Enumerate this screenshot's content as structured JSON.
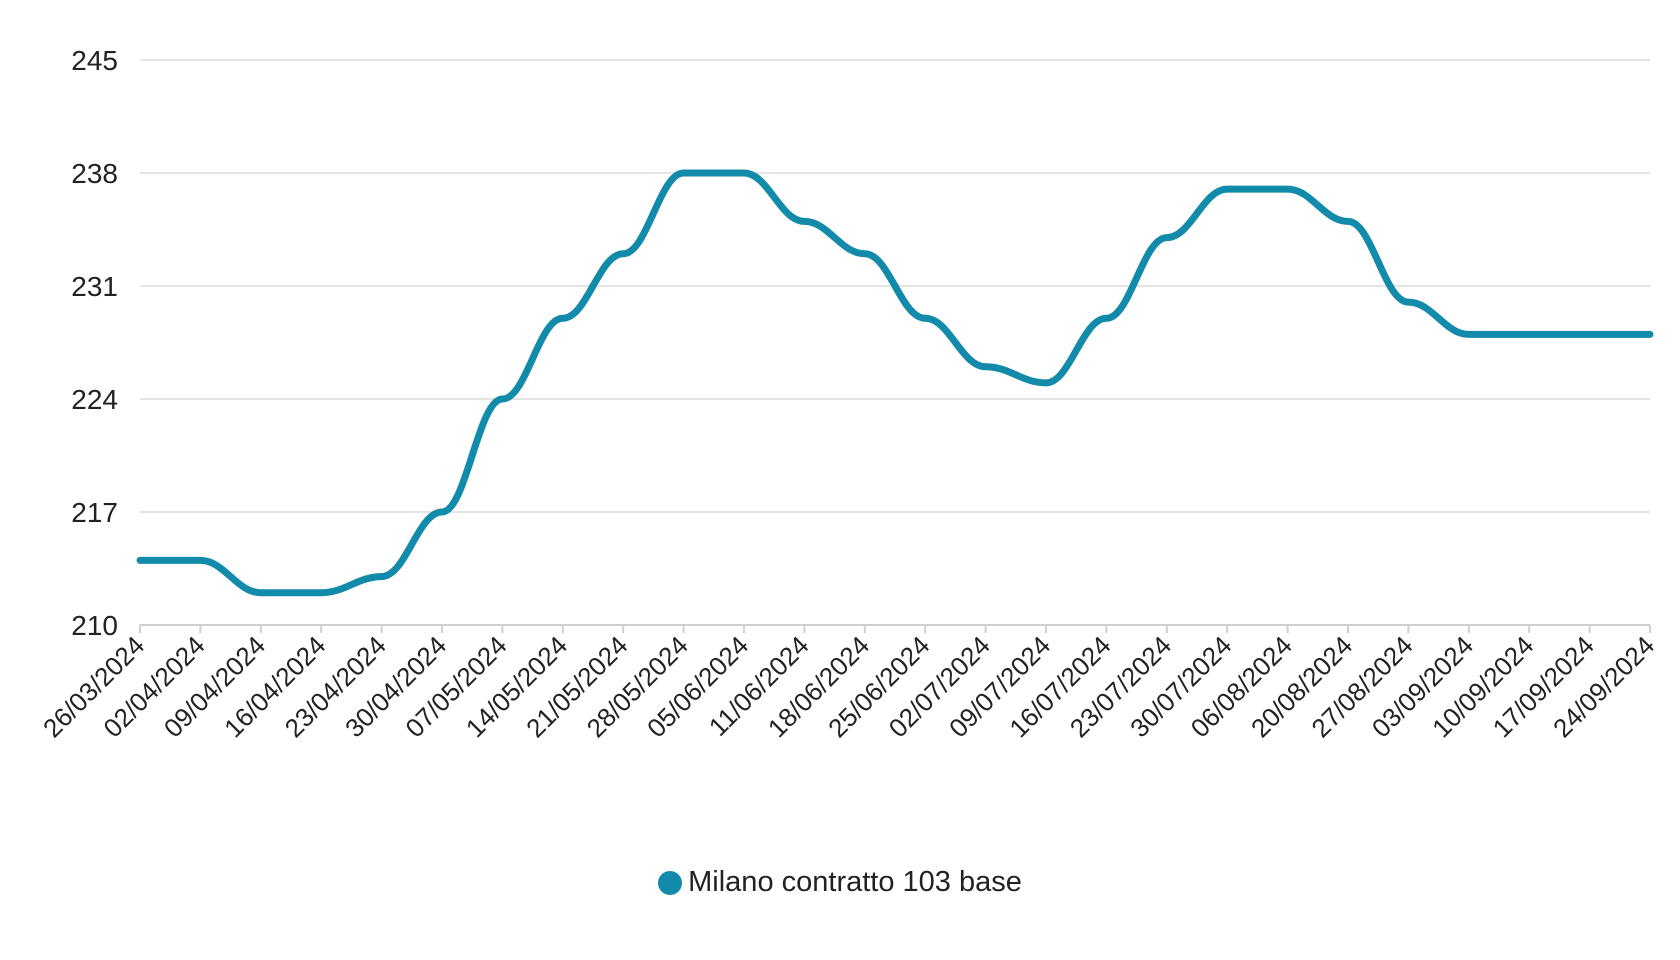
{
  "chart_data": {
    "type": "line",
    "title": "",
    "xlabel": "",
    "ylabel": "",
    "ylim": [
      210,
      245
    ],
    "yticks": [
      210,
      217,
      224,
      231,
      238,
      245
    ],
    "grid": true,
    "legend_position": "bottom",
    "categories": [
      "26/03/2024",
      "02/04/2024",
      "09/04/2024",
      "16/04/2024",
      "23/04/2024",
      "30/04/2024",
      "07/05/2024",
      "14/05/2024",
      "21/05/2024",
      "28/05/2024",
      "05/06/2024",
      "11/06/2024",
      "18/06/2024",
      "25/06/2024",
      "02/07/2024",
      "09/07/2024",
      "16/07/2024",
      "23/07/2024",
      "30/07/2024",
      "06/08/2024",
      "20/08/2024",
      "27/08/2024",
      "03/09/2024",
      "10/09/2024",
      "17/09/2024",
      "24/09/2024"
    ],
    "series": [
      {
        "name": "Milano contratto 103 base",
        "color": "#128aa9",
        "values": [
          214,
          214,
          212,
          212,
          213,
          217,
          224,
          229,
          233,
          238,
          238,
          235,
          233,
          229,
          226,
          225,
          229,
          234,
          237,
          237,
          235,
          230,
          228,
          228,
          228,
          228
        ]
      }
    ]
  },
  "colors": {
    "grid": "#dcdcdc",
    "axis": "#cfcfcf",
    "text": "#222222"
  }
}
